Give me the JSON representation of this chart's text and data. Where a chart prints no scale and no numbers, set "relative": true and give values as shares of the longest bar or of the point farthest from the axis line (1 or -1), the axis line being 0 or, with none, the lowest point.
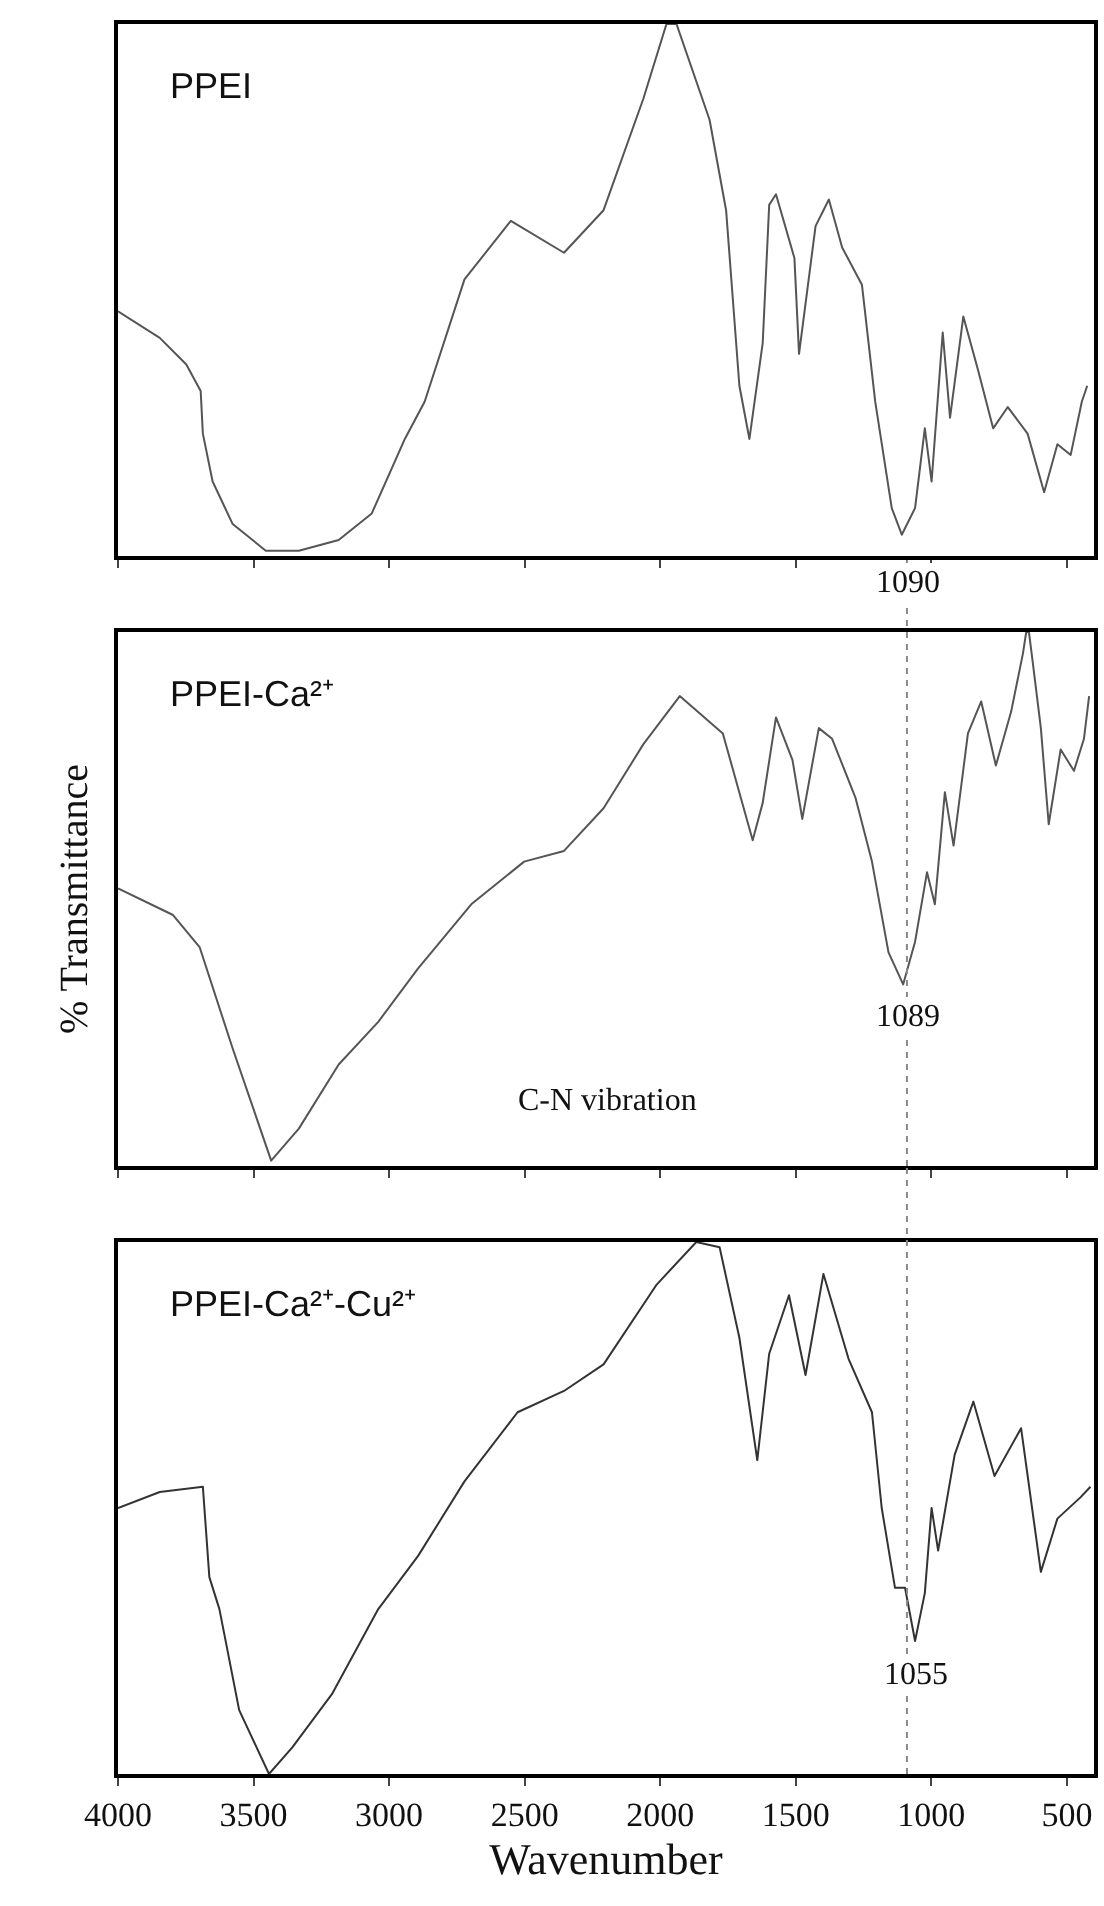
{
  "chart_data": [
    {
      "type": "line",
      "title": "PPEI",
      "relative": true,
      "xlim": [
        4000,
        400
      ],
      "xticks": [
        4000,
        3500,
        3000,
        2500,
        2000,
        1500,
        1000,
        500
      ],
      "tick_labels": false,
      "annotations": [
        "1090"
      ],
      "series": [
        {
          "color": "#555555",
          "x": [
            4000,
            3846,
            3748,
            3695,
            3687,
            3651,
            3577,
            3455,
            3333,
            3186,
            3064,
            2942,
            2869,
            2722,
            2551,
            2355,
            2209,
            2062,
            1977,
            1940,
            1818,
            1757,
            1708,
            1671,
            1622,
            1598,
            1573,
            1505,
            1488,
            1427,
            1378,
            1329,
            1256,
            1207,
            1146,
            1109,
            1060,
            1024,
            999,
            958,
            931,
            882,
            828,
            772,
            718,
            645,
            584,
            535,
            486,
            445,
            425
          ],
          "values": [
            0.46,
            0.41,
            0.36,
            0.31,
            0.23,
            0.14,
            0.06,
            0.01,
            0.01,
            0.03,
            0.08,
            0.22,
            0.29,
            0.52,
            0.63,
            0.57,
            0.65,
            0.86,
            1.0,
            1.0,
            0.82,
            0.65,
            0.32,
            0.22,
            0.4,
            0.66,
            0.68,
            0.56,
            0.38,
            0.62,
            0.67,
            0.58,
            0.51,
            0.29,
            0.09,
            0.04,
            0.09,
            0.24,
            0.14,
            0.42,
            0.26,
            0.45,
            0.35,
            0.24,
            0.28,
            0.23,
            0.12,
            0.21,
            0.19,
            0.29,
            0.32
          ]
        }
      ]
    },
    {
      "type": "line",
      "title": "PPEI-Ca²⁺",
      "ylabel": "% Transmittance",
      "relative": true,
      "xlim": [
        4000,
        400
      ],
      "xticks": [
        4000,
        3500,
        3000,
        2500,
        2000,
        1500,
        1000,
        500
      ],
      "tick_labels": false,
      "annotations": [
        {
          "text": "1089",
          "x": 1089,
          "y": 0.34
        },
        "C-N vibration"
      ],
      "ref_lines": [
        {
          "axis": "x",
          "value": 1090,
          "color": "#888888",
          "line_style": "dotted"
        }
      ],
      "series": [
        {
          "color": "#555555",
          "x": [
            4000,
            3797,
            3699,
            3577,
            3435,
            3333,
            3186,
            3040,
            2893,
            2697,
            2502,
            2355,
            2209,
            2062,
            1928,
            1769,
            1659,
            1622,
            1573,
            1512,
            1476,
            1415,
            1366,
            1280,
            1219,
            1158,
            1104,
            1060,
            1016,
            987,
            950,
            918,
            865,
            816,
            762,
            706,
            662,
            650,
            640,
            630,
            596,
            567,
            523,
            474,
            437,
            418
          ],
          "values": [
            0.52,
            0.47,
            0.41,
            0.22,
            0.01,
            0.07,
            0.19,
            0.27,
            0.37,
            0.49,
            0.57,
            0.59,
            0.67,
            0.79,
            0.88,
            0.81,
            0.61,
            0.68,
            0.84,
            0.76,
            0.65,
            0.82,
            0.8,
            0.69,
            0.57,
            0.4,
            0.34,
            0.42,
            0.55,
            0.49,
            0.7,
            0.6,
            0.81,
            0.87,
            0.75,
            0.85,
            0.96,
            1.0,
            1.0,
            0.96,
            0.82,
            0.64,
            0.78,
            0.74,
            0.8,
            0.88
          ]
        }
      ]
    },
    {
      "type": "line",
      "title": "PPEI-Ca²⁺-Cu²⁺",
      "xlabel": "Wavenumber",
      "relative": true,
      "xlim": [
        4000,
        400
      ],
      "xticks": [
        4000,
        3500,
        3000,
        2500,
        2000,
        1500,
        1000,
        500
      ],
      "tick_labels": "x",
      "annotations": [
        {
          "text": "1055",
          "x": 1055,
          "y": 0.25
        }
      ],
      "ref_lines": [
        {
          "axis": "x",
          "value": 1090,
          "color": "#888888",
          "line_style": "dotted"
        }
      ],
      "series": [
        {
          "color": "#333333",
          "x": [
            4000,
            3846,
            3687,
            3663,
            3626,
            3553,
            3443,
            3357,
            3211,
            3040,
            2893,
            2722,
            2526,
            2355,
            2209,
            2013,
            1867,
            1781,
            1708,
            1642,
            1598,
            1525,
            1464,
            1398,
            1305,
            1219,
            1183,
            1134,
            1097,
            1060,
            1024,
            999,
            975,
            914,
            845,
            767,
            669,
            596,
            535,
            450,
            413
          ],
          "values": [
            0.5,
            0.53,
            0.54,
            0.37,
            0.31,
            0.12,
            0.0,
            0.05,
            0.15,
            0.31,
            0.41,
            0.55,
            0.68,
            0.72,
            0.77,
            0.92,
            1.0,
            0.99,
            0.82,
            0.59,
            0.79,
            0.9,
            0.75,
            0.94,
            0.78,
            0.68,
            0.5,
            0.35,
            0.35,
            0.25,
            0.34,
            0.5,
            0.42,
            0.6,
            0.7,
            0.56,
            0.65,
            0.38,
            0.48,
            0.52,
            0.54
          ]
        }
      ]
    }
  ]
}
